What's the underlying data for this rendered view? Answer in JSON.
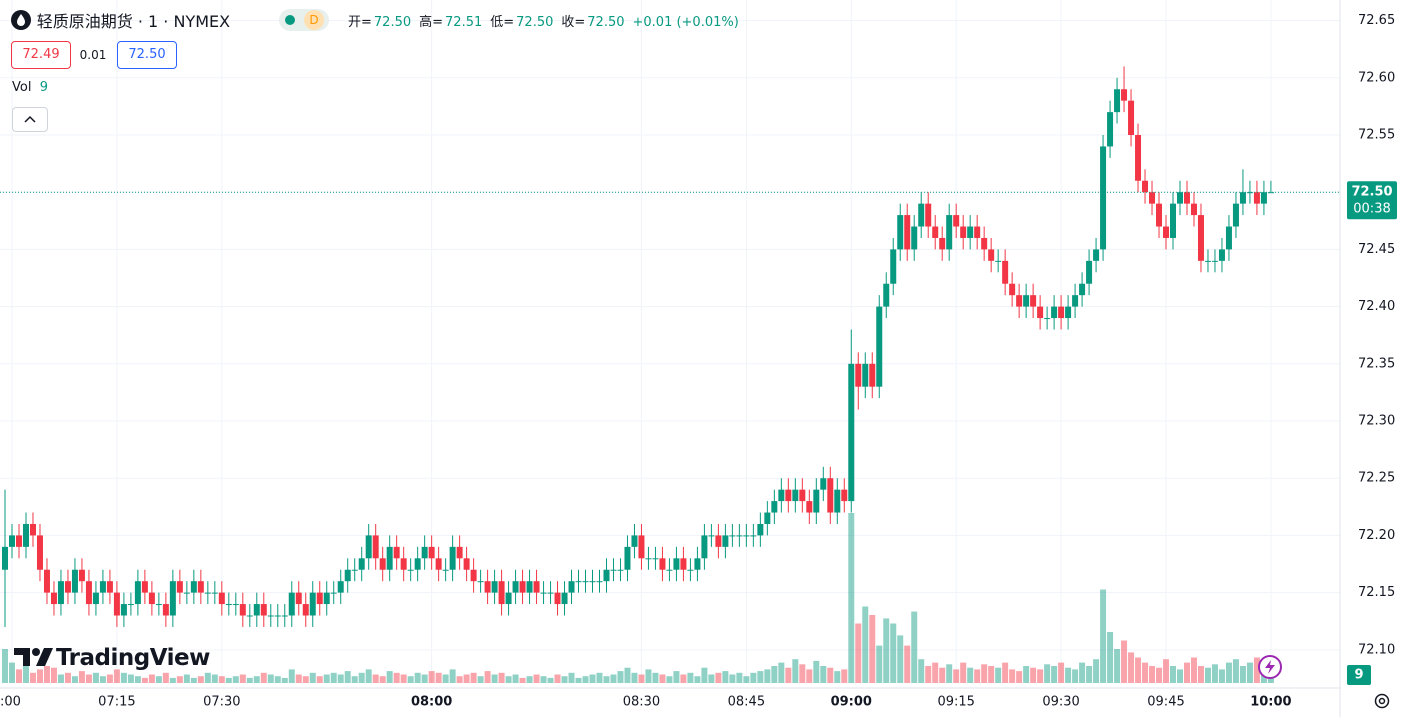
{
  "chart_data": {
    "type": "candlestick",
    "title": "轻质原油期货 · 1 · NYMEX",
    "badge": "D",
    "legend": [
      {
        "label": "开=",
        "value": "72.50"
      },
      {
        "label": "高=",
        "value": "72.51"
      },
      {
        "label": "低=",
        "value": "72.50"
      },
      {
        "label": "收=",
        "value": "72.50"
      }
    ],
    "change": "+0.01 (+0.01%)",
    "quote": {
      "bid": "72.49",
      "spread": "0.01",
      "ask": "72.50"
    },
    "volume_title": "Vol",
    "price_label": "72.50",
    "countdown": "00:38",
    "watermark": "TradingView",
    "up_color": "#089981",
    "down_color": "#f23645",
    "grid": true,
    "x": [
      "06:59",
      "07:00",
      "07:01",
      "07:02",
      "07:03",
      "07:04",
      "07:05",
      "07:06",
      "07:07",
      "07:08",
      "07:09",
      "07:10",
      "07:11",
      "07:12",
      "07:13",
      "07:14",
      "07:15",
      "07:16",
      "07:17",
      "07:18",
      "07:19",
      "07:20",
      "07:21",
      "07:22",
      "07:23",
      "07:24",
      "07:25",
      "07:26",
      "07:27",
      "07:28",
      "07:29",
      "07:30",
      "07:31",
      "07:32",
      "07:33",
      "07:34",
      "07:35",
      "07:36",
      "07:37",
      "07:38",
      "07:39",
      "07:40",
      "07:41",
      "07:42",
      "07:43",
      "07:44",
      "07:45",
      "07:46",
      "07:47",
      "07:48",
      "07:49",
      "07:50",
      "07:51",
      "07:52",
      "07:53",
      "07:54",
      "07:55",
      "07:56",
      "07:57",
      "07:58",
      "07:59",
      "08:00",
      "08:01",
      "08:02",
      "08:03",
      "08:04",
      "08:05",
      "08:06",
      "08:07",
      "08:08",
      "08:09",
      "08:10",
      "08:11",
      "08:12",
      "08:13",
      "08:14",
      "08:15",
      "08:16",
      "08:17",
      "08:18",
      "08:19",
      "08:20",
      "08:21",
      "08:22",
      "08:23",
      "08:24",
      "08:25",
      "08:26",
      "08:27",
      "08:28",
      "08:29",
      "08:30",
      "08:31",
      "08:32",
      "08:33",
      "08:34",
      "08:35",
      "08:36",
      "08:37",
      "08:38",
      "08:39",
      "08:40",
      "08:41",
      "08:42",
      "08:43",
      "08:44",
      "08:45",
      "08:46",
      "08:47",
      "08:48",
      "08:49",
      "08:50",
      "08:51",
      "08:52",
      "08:53",
      "08:54",
      "08:55",
      "08:56",
      "08:57",
      "08:58",
      "08:59",
      "09:00",
      "09:01",
      "09:02",
      "09:03",
      "09:04",
      "09:05",
      "09:06",
      "09:07",
      "09:08",
      "09:09",
      "09:10",
      "09:11",
      "09:12",
      "09:13",
      "09:14",
      "09:15",
      "09:16",
      "09:17",
      "09:18",
      "09:19",
      "09:20",
      "09:21",
      "09:22",
      "09:23",
      "09:24",
      "09:25",
      "09:26",
      "09:27",
      "09:28",
      "09:29",
      "09:30",
      "09:31",
      "09:32",
      "09:33",
      "09:34",
      "09:35",
      "09:36",
      "09:37",
      "09:38",
      "09:39",
      "09:40",
      "09:41",
      "09:42",
      "09:43",
      "09:44",
      "09:45",
      "09:46",
      "09:47",
      "09:48",
      "09:49",
      "09:50",
      "09:51",
      "09:52",
      "09:53",
      "09:54",
      "09:55",
      "09:56",
      "09:57",
      "09:58",
      "09:59",
      "10:00"
    ],
    "open": [
      72.17,
      72.19,
      72.2,
      72.19,
      72.21,
      72.2,
      72.17,
      72.15,
      72.14,
      72.16,
      72.15,
      72.17,
      72.16,
      72.14,
      72.15,
      72.16,
      72.15,
      72.13,
      72.14,
      72.14,
      72.16,
      72.15,
      72.14,
      72.14,
      72.13,
      72.16,
      72.15,
      72.15,
      72.16,
      72.15,
      72.15,
      72.15,
      72.14,
      72.14,
      72.14,
      72.13,
      72.13,
      72.14,
      72.13,
      72.13,
      72.13,
      72.13,
      72.15,
      72.14,
      72.13,
      72.15,
      72.14,
      72.15,
      72.15,
      72.16,
      72.17,
      72.17,
      72.18,
      72.2,
      72.18,
      72.17,
      72.19,
      72.18,
      72.17,
      72.17,
      72.18,
      72.19,
      72.18,
      72.17,
      72.17,
      72.19,
      72.18,
      72.17,
      72.16,
      72.16,
      72.15,
      72.16,
      72.14,
      72.15,
      72.16,
      72.15,
      72.16,
      72.15,
      72.15,
      72.15,
      72.14,
      72.15,
      72.16,
      72.16,
      72.16,
      72.16,
      72.16,
      72.17,
      72.17,
      72.17,
      72.19,
      72.2,
      72.18,
      72.18,
      72.18,
      72.17,
      72.17,
      72.18,
      72.17,
      72.17,
      72.18,
      72.2,
      72.2,
      72.19,
      72.2,
      72.2,
      72.2,
      72.2,
      72.2,
      72.21,
      72.22,
      72.23,
      72.24,
      72.23,
      72.24,
      72.23,
      72.22,
      72.24,
      72.25,
      72.22,
      72.24,
      72.23,
      72.35,
      72.33,
      72.35,
      72.33,
      72.4,
      72.42,
      72.45,
      72.48,
      72.45,
      72.47,
      72.49,
      72.47,
      72.46,
      72.45,
      72.48,
      72.47,
      72.46,
      72.47,
      72.46,
      72.45,
      72.44,
      72.44,
      72.42,
      72.41,
      72.4,
      72.41,
      72.4,
      72.39,
      72.39,
      72.4,
      72.39,
      72.4,
      72.41,
      72.42,
      72.44,
      72.45,
      72.54,
      72.57,
      72.59,
      72.58,
      72.55,
      72.51,
      72.5,
      72.49,
      72.47,
      72.46,
      72.49,
      72.5,
      72.49,
      72.48,
      72.44,
      72.44,
      72.44,
      72.45,
      72.47,
      72.49,
      72.5,
      72.5,
      72.49,
      72.5
    ],
    "high": [
      72.24,
      72.21,
      72.21,
      72.22,
      72.22,
      72.21,
      72.18,
      72.16,
      72.17,
      72.17,
      72.18,
      72.18,
      72.17,
      72.16,
      72.17,
      72.17,
      72.16,
      72.15,
      72.15,
      72.17,
      72.17,
      72.16,
      72.15,
      72.15,
      72.17,
      72.17,
      72.16,
      72.17,
      72.17,
      72.16,
      72.16,
      72.16,
      72.15,
      72.15,
      72.15,
      72.14,
      72.15,
      72.15,
      72.14,
      72.14,
      72.14,
      72.16,
      72.16,
      72.15,
      72.16,
      72.16,
      72.16,
      72.16,
      72.17,
      72.18,
      72.18,
      72.19,
      72.21,
      72.21,
      72.19,
      72.2,
      72.2,
      72.19,
      72.18,
      72.19,
      72.2,
      72.2,
      72.19,
      72.18,
      72.2,
      72.2,
      72.19,
      72.18,
      72.17,
      72.17,
      72.17,
      72.17,
      72.16,
      72.17,
      72.17,
      72.17,
      72.17,
      72.16,
      72.16,
      72.16,
      72.16,
      72.17,
      72.17,
      72.17,
      72.17,
      72.17,
      72.18,
      72.18,
      72.18,
      72.2,
      72.21,
      72.21,
      72.19,
      72.19,
      72.19,
      72.18,
      72.19,
      72.19,
      72.18,
      72.19,
      72.21,
      72.21,
      72.21,
      72.21,
      72.21,
      72.21,
      72.21,
      72.21,
      72.22,
      72.23,
      72.24,
      72.25,
      72.25,
      72.25,
      72.25,
      72.24,
      72.25,
      72.26,
      72.26,
      72.25,
      72.25,
      72.38,
      72.36,
      72.36,
      72.36,
      72.41,
      72.43,
      72.46,
      72.49,
      72.49,
      72.48,
      72.5,
      72.5,
      72.48,
      72.47,
      72.49,
      72.49,
      72.48,
      72.48,
      72.48,
      72.47,
      72.46,
      72.45,
      72.45,
      72.43,
      72.42,
      72.42,
      72.42,
      72.41,
      72.4,
      72.41,
      72.41,
      72.41,
      72.42,
      72.43,
      72.45,
      72.46,
      72.55,
      72.58,
      72.6,
      72.61,
      72.59,
      72.56,
      72.52,
      72.51,
      72.5,
      72.48,
      72.5,
      72.51,
      72.51,
      72.5,
      72.49,
      72.45,
      72.45,
      72.46,
      72.48,
      72.5,
      72.52,
      72.51,
      72.51,
      72.51,
      72.51
    ],
    "low": [
      72.12,
      72.18,
      72.18,
      72.18,
      72.19,
      72.16,
      72.14,
      72.13,
      72.13,
      72.14,
      72.14,
      72.15,
      72.13,
      72.13,
      72.14,
      72.14,
      72.12,
      72.12,
      72.13,
      72.13,
      72.14,
      72.13,
      72.13,
      72.12,
      72.12,
      72.14,
      72.14,
      72.14,
      72.14,
      72.14,
      72.14,
      72.13,
      72.13,
      72.13,
      72.12,
      72.12,
      72.12,
      72.12,
      72.12,
      72.12,
      72.12,
      72.12,
      72.13,
      72.12,
      72.12,
      72.13,
      72.13,
      72.14,
      72.14,
      72.15,
      72.16,
      72.16,
      72.17,
      72.17,
      72.16,
      72.16,
      72.17,
      72.16,
      72.16,
      72.16,
      72.17,
      72.17,
      72.16,
      72.16,
      72.16,
      72.17,
      72.16,
      72.15,
      72.15,
      72.14,
      72.14,
      72.13,
      72.13,
      72.14,
      72.14,
      72.14,
      72.14,
      72.14,
      72.14,
      72.13,
      72.13,
      72.14,
      72.15,
      72.15,
      72.15,
      72.15,
      72.15,
      72.16,
      72.16,
      72.16,
      72.18,
      72.17,
      72.17,
      72.17,
      72.16,
      72.16,
      72.16,
      72.16,
      72.16,
      72.16,
      72.17,
      72.19,
      72.18,
      72.18,
      72.19,
      72.19,
      72.19,
      72.19,
      72.19,
      72.2,
      72.21,
      72.22,
      72.22,
      72.22,
      72.22,
      72.21,
      72.21,
      72.23,
      72.21,
      72.21,
      72.22,
      72.22,
      72.31,
      72.32,
      72.32,
      72.32,
      72.39,
      72.41,
      72.44,
      72.44,
      72.44,
      72.46,
      72.46,
      72.45,
      72.44,
      72.44,
      72.46,
      72.45,
      72.45,
      72.45,
      72.44,
      72.43,
      72.43,
      72.41,
      72.4,
      72.39,
      72.39,
      72.39,
      72.38,
      72.38,
      72.38,
      72.38,
      72.38,
      72.39,
      72.4,
      72.41,
      72.43,
      72.44,
      72.53,
      72.56,
      72.57,
      72.54,
      72.5,
      72.49,
      72.48,
      72.46,
      72.45,
      72.45,
      72.48,
      72.48,
      72.47,
      72.43,
      72.43,
      72.43,
      72.43,
      72.44,
      72.46,
      72.48,
      72.49,
      72.48,
      72.48,
      72.5
    ],
    "close": [
      72.19,
      72.2,
      72.19,
      72.21,
      72.2,
      72.17,
      72.15,
      72.14,
      72.16,
      72.15,
      72.17,
      72.16,
      72.14,
      72.15,
      72.16,
      72.15,
      72.13,
      72.14,
      72.14,
      72.16,
      72.15,
      72.14,
      72.14,
      72.13,
      72.16,
      72.15,
      72.15,
      72.16,
      72.15,
      72.15,
      72.15,
      72.14,
      72.14,
      72.14,
      72.13,
      72.13,
      72.14,
      72.13,
      72.13,
      72.13,
      72.13,
      72.15,
      72.14,
      72.13,
      72.15,
      72.14,
      72.15,
      72.15,
      72.16,
      72.17,
      72.17,
      72.18,
      72.2,
      72.18,
      72.17,
      72.19,
      72.18,
      72.17,
      72.17,
      72.18,
      72.19,
      72.18,
      72.17,
      72.17,
      72.19,
      72.18,
      72.17,
      72.16,
      72.16,
      72.15,
      72.16,
      72.14,
      72.15,
      72.16,
      72.15,
      72.16,
      72.15,
      72.15,
      72.15,
      72.14,
      72.15,
      72.16,
      72.16,
      72.16,
      72.16,
      72.16,
      72.17,
      72.17,
      72.17,
      72.19,
      72.2,
      72.18,
      72.18,
      72.18,
      72.17,
      72.17,
      72.18,
      72.17,
      72.17,
      72.18,
      72.2,
      72.2,
      72.19,
      72.2,
      72.2,
      72.2,
      72.2,
      72.2,
      72.21,
      72.22,
      72.23,
      72.24,
      72.23,
      72.24,
      72.23,
      72.22,
      72.24,
      72.25,
      72.22,
      72.24,
      72.23,
      72.35,
      72.33,
      72.35,
      72.33,
      72.4,
      72.42,
      72.45,
      72.48,
      72.45,
      72.47,
      72.49,
      72.47,
      72.46,
      72.45,
      72.48,
      72.47,
      72.46,
      72.47,
      72.46,
      72.45,
      72.44,
      72.44,
      72.42,
      72.41,
      72.4,
      72.41,
      72.4,
      72.39,
      72.39,
      72.4,
      72.39,
      72.4,
      72.41,
      72.42,
      72.44,
      72.45,
      72.54,
      72.57,
      72.59,
      72.58,
      72.55,
      72.51,
      72.5,
      72.49,
      72.47,
      72.46,
      72.49,
      72.5,
      72.49,
      72.48,
      72.44,
      72.44,
      72.44,
      72.45,
      72.47,
      72.49,
      72.5,
      72.5,
      72.49,
      72.5,
      72.5
    ],
    "volume": [
      20,
      12,
      8,
      10,
      6,
      8,
      10,
      9,
      5,
      6,
      4,
      7,
      5,
      6,
      4,
      5,
      8,
      6,
      5,
      4,
      3,
      5,
      4,
      6,
      3,
      4,
      5,
      3,
      4,
      6,
      5,
      4,
      3,
      4,
      5,
      3,
      4,
      6,
      5,
      4,
      3,
      8,
      5,
      4,
      6,
      4,
      5,
      6,
      5,
      7,
      4,
      6,
      8,
      5,
      4,
      7,
      6,
      5,
      4,
      6,
      5,
      7,
      6,
      5,
      8,
      4,
      5,
      6,
      4,
      7,
      5,
      6,
      4,
      5,
      3,
      4,
      5,
      4,
      3,
      5,
      4,
      6,
      3,
      4,
      5,
      6,
      4,
      5,
      7,
      9,
      6,
      5,
      8,
      6,
      5,
      4,
      7,
      5,
      6,
      4,
      9,
      5,
      6,
      7,
      5,
      6,
      4,
      6,
      7,
      8,
      10,
      12,
      9,
      14,
      11,
      8,
      13,
      10,
      9,
      7,
      8,
      100,
      35,
      45,
      40,
      22,
      38,
      35,
      28,
      22,
      42,
      14,
      10,
      12,
      9,
      11,
      8,
      12,
      9,
      8,
      11,
      10,
      9,
      12,
      8,
      7,
      10,
      9,
      8,
      11,
      10,
      12,
      9,
      8,
      12,
      10,
      14,
      55,
      30,
      20,
      25,
      18,
      15,
      12,
      10,
      9,
      14,
      10,
      8,
      12,
      15,
      10,
      9,
      11,
      8,
      12,
      14,
      10,
      12,
      15,
      11,
      9
    ],
    "ylim": [
      72.071,
      72.668
    ],
    "yticks": [
      {
        "value": 72.1,
        "label": "72.10"
      },
      72.15,
      {
        "value": 72.2,
        "label": "72.20"
      },
      72.25,
      {
        "value": 72.3,
        "label": "72.30"
      },
      72.35,
      {
        "value": 72.4,
        "label": "72.40"
      },
      72.45,
      {
        "value": 72.5,
        "label": "72.50"
      },
      72.55,
      {
        "value": 72.6,
        "label": "72.60"
      },
      72.65
    ],
    "xticks": [
      {
        "value": "07:00",
        "label": ":00"
      },
      "07:15",
      "07:30",
      "08:00",
      "08:30",
      "08:45",
      "09:00",
      "09:15",
      "09:30",
      "09:45",
      "10:00"
    ]
  }
}
